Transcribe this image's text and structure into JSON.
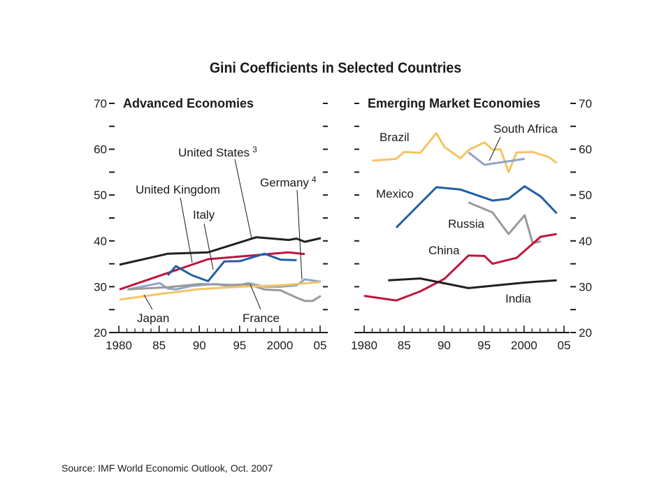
{
  "title": "Gini Coefficients in Selected Countries",
  "source": "Source: IMF World Economic Outlook, Oct. 2007",
  "colors": {
    "black": "#231f20",
    "red": "#c0143c",
    "blue": "#1f5fa6",
    "lightblue": "#8fa3cc",
    "yellow": "#f5c462",
    "gray": "#9a9a9a",
    "axis": "#1a1a1a"
  },
  "chart_data": [
    {
      "type": "line",
      "title": "Advanced Economies",
      "x_ticks": [
        "1980",
        "85",
        "90",
        "95",
        "2000",
        "05"
      ],
      "y_ticks": [
        "20",
        "30",
        "40",
        "50",
        "60",
        "70"
      ],
      "xlim": [
        1980,
        2005
      ],
      "ylim": [
        20,
        70
      ],
      "y_axis_side": "left",
      "series": [
        {
          "name": "United States",
          "footnote": "3",
          "color": "black",
          "x": [
            1980,
            1986,
            1991,
            1997,
            2001,
            2002,
            2003,
            2005
          ],
          "y": [
            34.8,
            37.2,
            37.5,
            40.8,
            40.2,
            40.5,
            39.8,
            40.6
          ]
        },
        {
          "name": "United Kingdom",
          "color": "red",
          "x": [
            1980,
            1986,
            1991,
            1995,
            2001,
            2003
          ],
          "y": [
            29.4,
            33.0,
            36.0,
            36.6,
            37.5,
            37.1
          ]
        },
        {
          "name": "Italy",
          "color": "blue",
          "x": [
            1986,
            1987,
            1989,
            1991,
            1993,
            1995,
            1998,
            2000,
            2002
          ],
          "y": [
            32.5,
            34.5,
            32.5,
            31.2,
            35.5,
            35.6,
            37.2,
            35.9,
            35.8
          ]
        },
        {
          "name": "Germany",
          "footnote": "4",
          "color": "lightblue",
          "x": [
            1981,
            1985,
            1986,
            1987,
            1989,
            1992,
            1994,
            1996,
            1998,
            2000,
            2002,
            2003,
            2005
          ],
          "y": [
            29.4,
            30.8,
            29.6,
            29.4,
            30.2,
            30.6,
            30.0,
            30.8,
            30.0,
            30.0,
            30.3,
            31.6,
            31.1
          ]
        },
        {
          "name": "France",
          "color": "gray",
          "x": [
            1981,
            1986,
            1990,
            1994,
            1996,
            1998,
            2000,
            2002,
            2003,
            2004,
            2005
          ],
          "y": [
            29.4,
            29.9,
            30.6,
            30.4,
            30.5,
            29.4,
            29.2,
            27.6,
            26.9,
            26.9,
            28.0
          ]
        },
        {
          "name": "Japan",
          "color": "yellow",
          "x": [
            1980,
            1985,
            1990,
            1995,
            2000,
            2005
          ],
          "y": [
            27.2,
            28.4,
            29.5,
            30.0,
            30.3,
            31.0
          ]
        }
      ]
    },
    {
      "type": "line",
      "title": "Emerging Market Economies",
      "x_ticks": [
        "1980",
        "85",
        "90",
        "95",
        "2000",
        "05"
      ],
      "y_ticks": [
        "20",
        "30",
        "40",
        "50",
        "60",
        "70"
      ],
      "xlim": [
        1980,
        2005
      ],
      "ylim": [
        20,
        70
      ],
      "y_axis_side": "right",
      "series": [
        {
          "name": "Brazil",
          "color": "yellow",
          "x": [
            1981,
            1984,
            1985,
            1987,
            1989,
            1990,
            1992,
            1993,
            1995,
            1996,
            1997,
            1998,
            1999,
            2001,
            2003,
            2004
          ],
          "y": [
            57.5,
            57.9,
            59.4,
            59.2,
            63.5,
            60.5,
            58.0,
            59.8,
            61.5,
            59.9,
            60.0,
            55.0,
            59.3,
            59.4,
            58.3,
            57.0
          ]
        },
        {
          "name": "South Africa",
          "color": "lightblue",
          "x": [
            1993,
            1995,
            2000
          ],
          "y": [
            59.3,
            56.6,
            57.9
          ]
        },
        {
          "name": "Mexico",
          "color": "blue",
          "x": [
            1984,
            1989,
            1992,
            1996,
            1998,
            2000,
            2002,
            2004
          ],
          "y": [
            42.9,
            51.7,
            51.2,
            48.8,
            49.2,
            51.9,
            49.7,
            46.0
          ]
        },
        {
          "name": "Russia",
          "color": "gray",
          "x": [
            1993,
            1996,
            1998,
            2000,
            2001,
            2002
          ],
          "y": [
            48.4,
            46.2,
            41.5,
            45.6,
            39.5,
            39.9
          ]
        },
        {
          "name": "China",
          "color": "red",
          "x": [
            1980,
            1984,
            1987,
            1990,
            1993,
            1995,
            1996,
            1999,
            2002,
            2004
          ],
          "y": [
            28.0,
            27.0,
            29.0,
            31.7,
            36.8,
            36.7,
            35.0,
            36.3,
            40.9,
            41.5
          ]
        },
        {
          "name": "India",
          "color": "black",
          "x": [
            1983,
            1987,
            1993,
            2000,
            2004
          ],
          "y": [
            31.4,
            31.8,
            29.7,
            30.9,
            31.4
          ]
        }
      ]
    }
  ]
}
